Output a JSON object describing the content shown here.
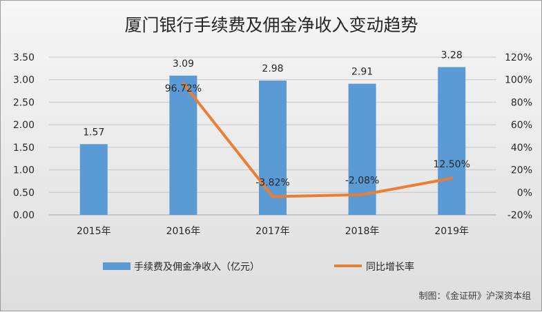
{
  "chart_data": {
    "type": "bar",
    "title": "厦门银行手续费及佣金净收入变动趋势",
    "categories": [
      "2015年",
      "2016年",
      "2017年",
      "2018年",
      "2019年"
    ],
    "series": [
      {
        "name": "手续费及佣金净收入（亿元）",
        "type": "bar",
        "axis": "left",
        "values": [
          1.57,
          3.09,
          2.98,
          2.91,
          3.28
        ],
        "labels": [
          "1.57",
          "3.09",
          "2.98",
          "2.91",
          "3.28"
        ],
        "color": "#5b9bd5"
      },
      {
        "name": "同比增长率",
        "type": "line",
        "axis": "right",
        "values": [
          null,
          96.72,
          -3.82,
          -2.08,
          12.5
        ],
        "labels": [
          "",
          "96.72%",
          "-3.82%",
          "-2.08%",
          "12.50%"
        ],
        "color": "#ed7d31"
      }
    ],
    "y_left": {
      "min": 0,
      "max": 3.5,
      "ticks": [
        "0.00",
        "0.50",
        "1.00",
        "1.50",
        "2.00",
        "2.50",
        "3.00",
        "3.50"
      ]
    },
    "y_right": {
      "min": -20,
      "max": 120,
      "ticks": [
        "-20%",
        "0%",
        "20%",
        "40%",
        "60%",
        "80%",
        "100%",
        "120%"
      ]
    },
    "grid": true,
    "legend": "bottom",
    "credit": "制图：《金证研》沪深资本组"
  }
}
